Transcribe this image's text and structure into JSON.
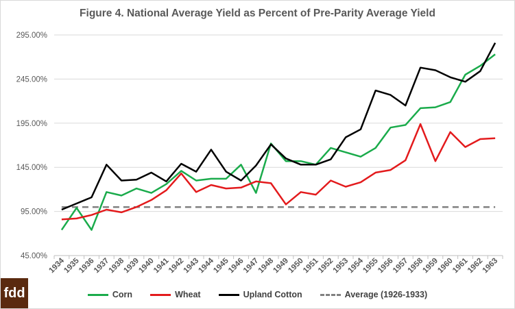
{
  "logo": {
    "text": "fdd"
  },
  "chart_data": {
    "type": "line",
    "title": "Figure 4. National Average Yield as Percent of Pre-Parity Average Yield",
    "xlabel": "",
    "ylabel": "",
    "categories": [
      "1934",
      "1935",
      "1936",
      "1937",
      "1938",
      "1939",
      "1940",
      "1941",
      "1942",
      "1943",
      "1944",
      "1945",
      "1946",
      "1947",
      "1948",
      "1949",
      "1950",
      "1951",
      "1952",
      "1953",
      "1954",
      "1955",
      "1956",
      "1957",
      "1958",
      "1959",
      "1960",
      "1961",
      "1962",
      "1963"
    ],
    "y_ticks": [
      "45.00%",
      "95.00%",
      "145.00%",
      "195.00%",
      "245.00%",
      "295.00%"
    ],
    "y_tick_values": [
      45,
      95,
      145,
      195,
      245,
      295
    ],
    "ylim": [
      45,
      295
    ],
    "grid": true,
    "legend_position": "bottom",
    "series": [
      {
        "name": "Corn",
        "color": "#1aab4b",
        "dash": false,
        "values": [
          74,
          99,
          74,
          117,
          113,
          121,
          116,
          126,
          141,
          130,
          132,
          132,
          148,
          116,
          172,
          152,
          152,
          148,
          167,
          162,
          157,
          167,
          190,
          193,
          212,
          213,
          219,
          250,
          260,
          273
        ]
      },
      {
        "name": "Wheat",
        "color": "#e31a1c",
        "dash": false,
        "values": [
          86,
          87,
          91,
          97,
          94,
          100,
          108,
          119,
          138,
          117,
          125,
          121,
          122,
          129,
          127,
          103,
          117,
          114,
          130,
          123,
          128,
          139,
          142,
          153,
          194,
          152,
          185,
          168,
          177,
          178
        ]
      },
      {
        "name": "Upland Cotton",
        "color": "#000000",
        "dash": false,
        "values": [
          97,
          104,
          111,
          148,
          130,
          131,
          139,
          129,
          149,
          140,
          165,
          140,
          130,
          147,
          171,
          155,
          148,
          148,
          154,
          179,
          188,
          232,
          227,
          215,
          258,
          255,
          247,
          242,
          254,
          286
        ]
      },
      {
        "name": "Average (1926-1933)",
        "color": "#808080",
        "dash": true,
        "values": [
          100,
          100,
          100,
          100,
          100,
          100,
          100,
          100,
          100,
          100,
          100,
          100,
          100,
          100,
          100,
          100,
          100,
          100,
          100,
          100,
          100,
          100,
          100,
          100,
          100,
          100,
          100,
          100,
          100,
          100
        ]
      }
    ]
  }
}
